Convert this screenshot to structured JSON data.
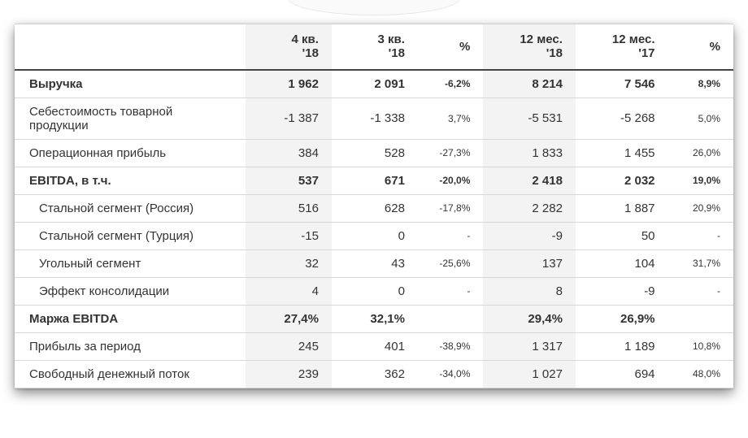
{
  "columns": [
    "",
    "4 кв. '18",
    "3 кв. '18",
    "%",
    "12 мес. '18",
    "12 мес. '17",
    "%"
  ],
  "shade_cols": [
    1,
    4
  ],
  "pct_cols": [
    3,
    6
  ],
  "rows": [
    {
      "bold": true,
      "section": false,
      "indent": false,
      "cells": [
        "Выручка",
        "1 962",
        "2 091",
        "-6,2%",
        "8 214",
        "7 546",
        "8,9%"
      ]
    },
    {
      "bold": false,
      "section": true,
      "indent": false,
      "cells": [
        "Себестоимость товарной продукции",
        "-1 387",
        "-1 338",
        "3,7%",
        "-5 531",
        "-5 268",
        "5,0%"
      ]
    },
    {
      "bold": false,
      "section": true,
      "indent": false,
      "cells": [
        "Операционная прибыль",
        "384",
        "528",
        "-27,3%",
        "1 833",
        "1 455",
        "26,0%"
      ]
    },
    {
      "bold": true,
      "section": true,
      "indent": false,
      "cells": [
        "EBITDA, в т.ч.",
        "537",
        "671",
        "-20,0%",
        "2 418",
        "2 032",
        "19,0%"
      ]
    },
    {
      "bold": false,
      "section": true,
      "indent": true,
      "cells": [
        "Стальной сегмент (Россия)",
        "516",
        "628",
        "-17,8%",
        "2 282",
        "1 887",
        "20,9%"
      ]
    },
    {
      "bold": false,
      "section": true,
      "indent": true,
      "cells": [
        "Стальной сегмент (Турция)",
        "-15",
        "0",
        "-",
        "-9",
        "50",
        "-"
      ]
    },
    {
      "bold": false,
      "section": true,
      "indent": true,
      "cells": [
        "Угольный сегмент",
        "32",
        "43",
        "-25,6%",
        "137",
        "104",
        "31,7%"
      ]
    },
    {
      "bold": false,
      "section": true,
      "indent": true,
      "cells": [
        "Эффект консолидации",
        "4",
        "0",
        "-",
        "8",
        "-9",
        "-"
      ]
    },
    {
      "bold": true,
      "section": true,
      "indent": false,
      "cells": [
        "Маржа EBITDA",
        "27,4%",
        "32,1%",
        "",
        "29,4%",
        "26,9%",
        ""
      ]
    },
    {
      "bold": false,
      "section": true,
      "indent": false,
      "cells": [
        "Прибыль за период",
        "245",
        "401",
        "-38,9%",
        "1 317",
        "1 189",
        "10,8%"
      ]
    },
    {
      "bold": false,
      "section": true,
      "indent": false,
      "cells": [
        "Свободный денежный поток",
        "239",
        "362",
        "-34,0%",
        "1 027",
        "694",
        "48,0%"
      ]
    }
  ]
}
